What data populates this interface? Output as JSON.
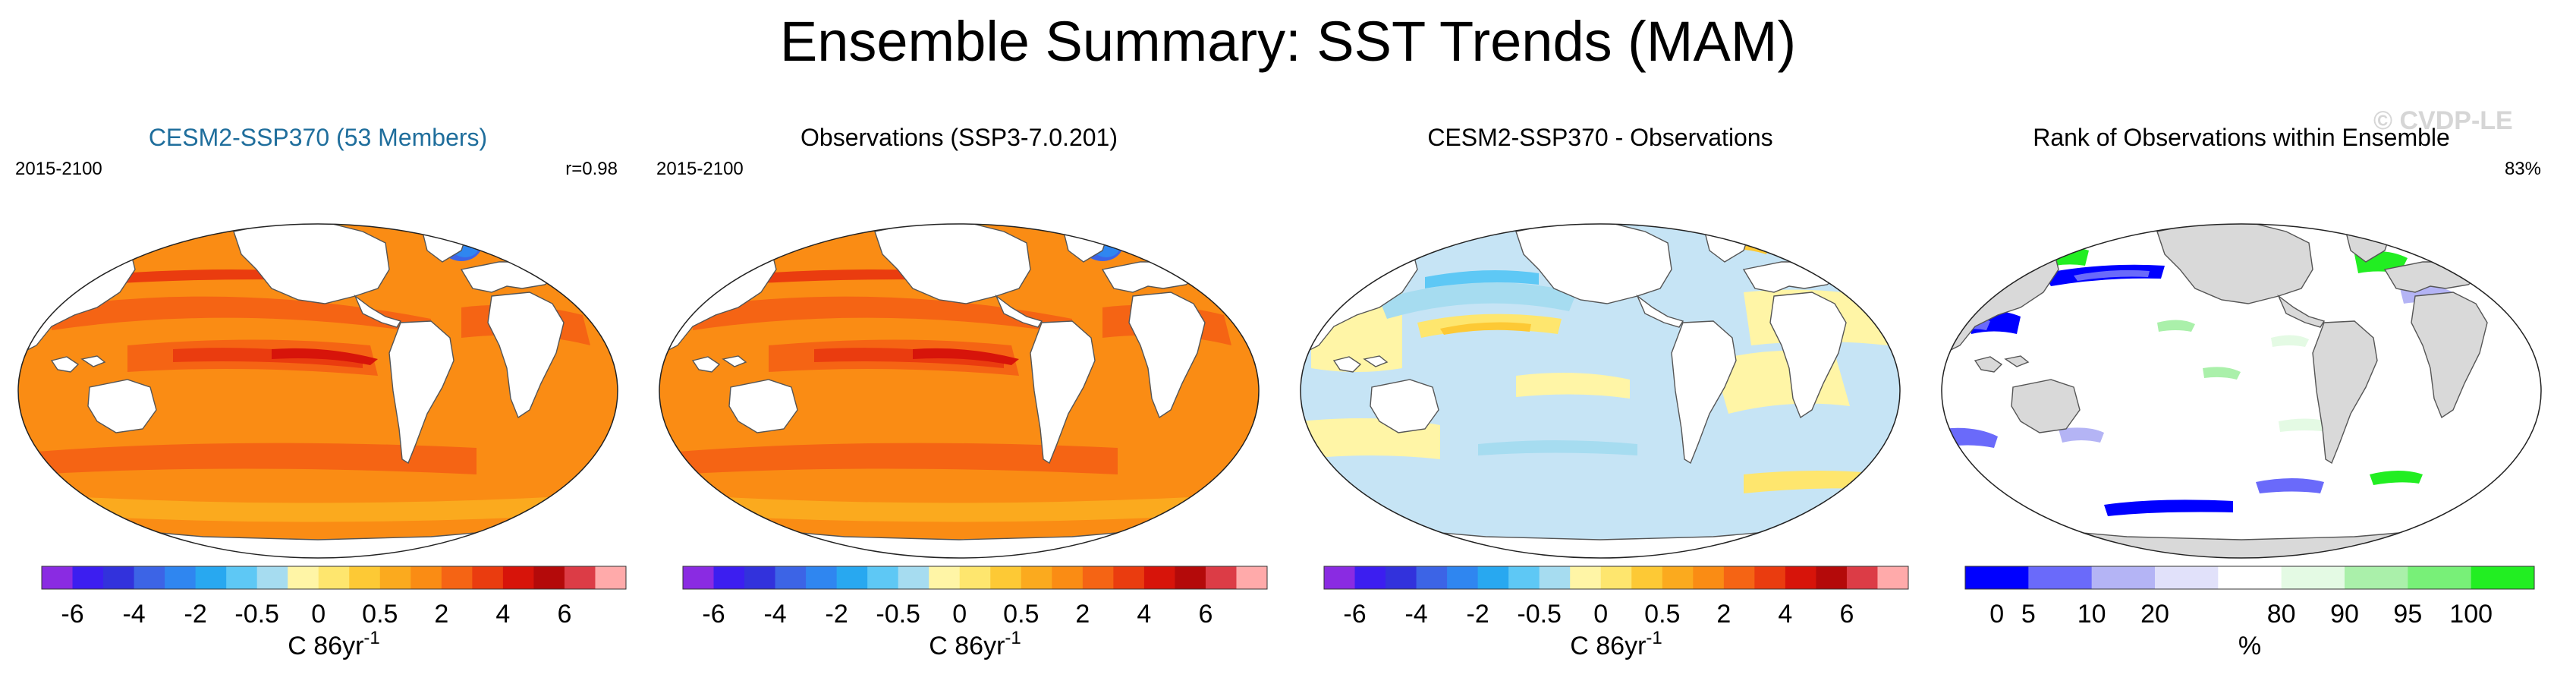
{
  "title": "Ensemble Summary: SST Trends (MAM)",
  "watermark": "© CVDP-LE",
  "panels": [
    {
      "title": "CESM2-SSP370 (53 Members)",
      "title_color": "#1f6e9c",
      "left_label": "2015-2100",
      "right_label": "r=0.98",
      "map": "trend"
    },
    {
      "title": "Observations (SSP3-7.0.201)",
      "title_color": "#000000",
      "left_label": "2015-2100",
      "right_label": "",
      "map": "trend"
    },
    {
      "title": "CESM2-SSP370 - Observations",
      "title_color": "#000000",
      "left_label": "",
      "right_label": "",
      "map": "diff"
    },
    {
      "title": "Rank of Observations within Ensemble",
      "title_color": "#000000",
      "left_label": "",
      "right_label": "83%",
      "map": "rank"
    }
  ],
  "trend_colorbar": {
    "colors": [
      "#8a2be2",
      "#3c1ef0",
      "#3232dc",
      "#3c64e6",
      "#2f86f0",
      "#28a8f0",
      "#5ec8f5",
      "#a6dcf0",
      "#fff5a6",
      "#fee66e",
      "#fdc935",
      "#fbaa1e",
      "#fa8c14",
      "#f56414",
      "#ea3c0f",
      "#d7140a",
      "#b40a0a",
      "#dc3c46",
      "#ffaaaa"
    ],
    "ticks": [
      "-6",
      "-4",
      "-2",
      "-0.5",
      "0",
      "0.5",
      "2",
      "4",
      "6"
    ],
    "tick_boundaries": [
      1,
      3,
      5,
      7,
      9,
      11,
      13,
      15,
      17
    ],
    "units": "C 86yr",
    "units_sup": "-1"
  },
  "rank_colorbar": {
    "colors": [
      "#0000ff",
      "#6a6afa",
      "#b4b4f5",
      "#e1e1fa",
      "#ffffff",
      "#e4fae4",
      "#aaf0aa",
      "#78f078",
      "#22ee22"
    ],
    "ticks": [
      "0",
      "5",
      "10",
      "20",
      "80",
      "90",
      "95",
      "100"
    ],
    "tick_boundaries": [
      0.5,
      1,
      2,
      3,
      5,
      6,
      7,
      8
    ],
    "units": "%"
  },
  "chart_data": [
    {
      "type": "heatmap",
      "title": "CESM2-SSP370 (53 Members)",
      "period": "2015-2100",
      "pattern_correlation": 0.98,
      "units": "C 86yr-1",
      "levels": [
        -6,
        -4,
        -2,
        -0.5,
        0,
        0.5,
        2,
        4,
        6
      ]
    },
    {
      "type": "heatmap",
      "title": "Observations (SSP3-7.0.201)",
      "period": "2015-2100",
      "units": "C 86yr-1",
      "levels": [
        -6,
        -4,
        -2,
        -0.5,
        0,
        0.5,
        2,
        4,
        6
      ]
    },
    {
      "type": "heatmap",
      "title": "CESM2-SSP370 - Observations",
      "units": "C 86yr-1",
      "levels": [
        -6,
        -4,
        -2,
        -0.5,
        0,
        0.5,
        2,
        4,
        6
      ]
    },
    {
      "type": "heatmap",
      "title": "Rank of Observations within Ensemble",
      "summary": "83%",
      "units": "%",
      "levels": [
        0,
        5,
        10,
        20,
        80,
        90,
        95,
        100
      ]
    }
  ]
}
